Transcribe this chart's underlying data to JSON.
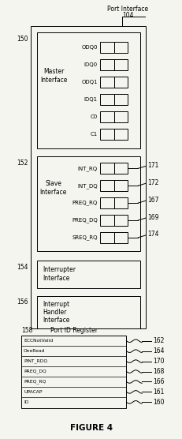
{
  "title": "FIGURE 4",
  "port_interface_label": "Port Interface",
  "port_interface_num": "104",
  "bg": "#f5f5f0",
  "master_block": {
    "label": "150",
    "title": "Master\nInterface",
    "signals": [
      "ODQ0",
      "IDQ0",
      "ODQ1",
      "IDQ1",
      "C0",
      "C1"
    ]
  },
  "slave_block": {
    "label": "152",
    "title": "Slave\nInterface",
    "signals": [
      "INT_RQ",
      "INT_DQ",
      "PREQ_RQ",
      "PREQ_DQ",
      "SREQ_RQ"
    ],
    "numbers": [
      "171",
      "172",
      "167",
      "169",
      "174"
    ]
  },
  "interrupter_block": {
    "label": "154",
    "title": "Interrupter\nInterface"
  },
  "handler_block": {
    "label": "156",
    "title": "Interrupt\nHandler\nInterface"
  },
  "port_id_block": {
    "label": "158",
    "title": "Port ID Register",
    "signals": [
      "ECCNotValid",
      "OneRead",
      "PINT_RDQ",
      "PREQ_DQ",
      "PREQ_RQ",
      "UPACAP",
      "ID"
    ],
    "numbers": [
      "162",
      "164",
      "170",
      "168",
      "166",
      "161",
      "160"
    ]
  }
}
